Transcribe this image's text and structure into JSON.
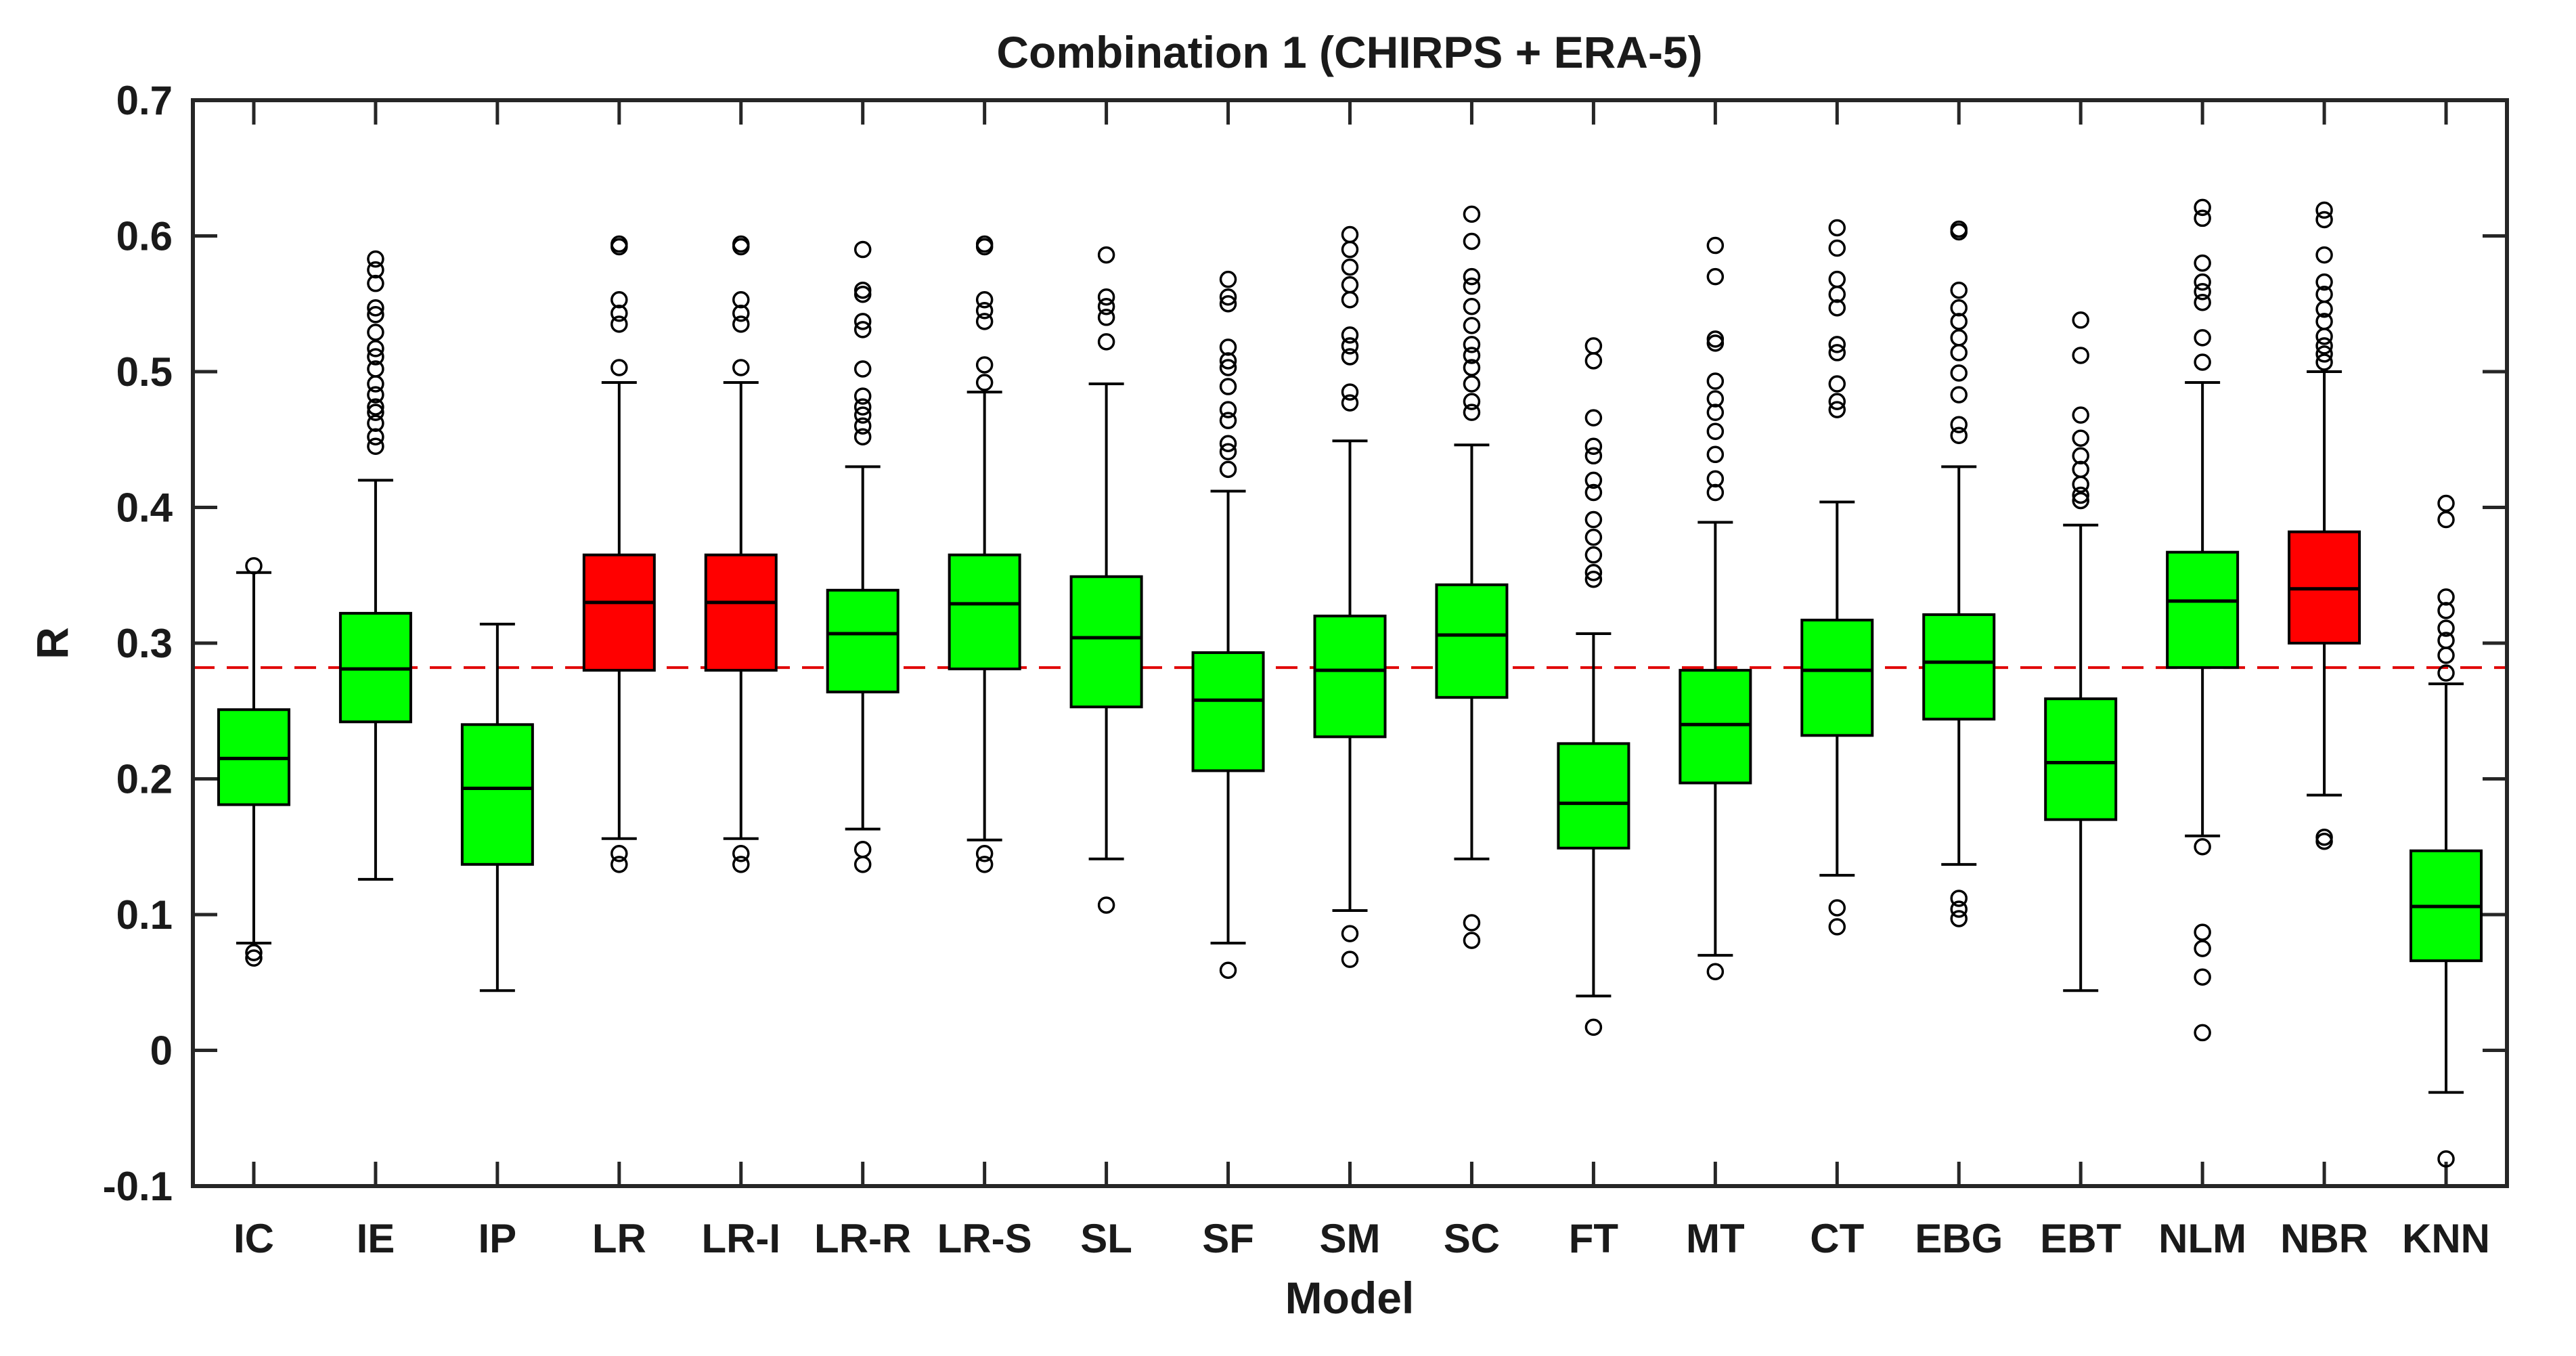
{
  "chart_data": {
    "type": "boxplot",
    "title": "Combination 1 (CHIRPS + ERA-5)",
    "xlabel": "Model",
    "ylabel": "R",
    "ylim": [
      -0.1,
      0.7
    ],
    "yticks": [
      -0.1,
      0,
      0.1,
      0.2,
      0.3,
      0.4,
      0.5,
      0.6,
      0.7
    ],
    "ytick_labels": [
      "-0.1",
      "0",
      "0.1",
      "0.2",
      "0.3",
      "0.4",
      "0.5",
      "0.6",
      "0.7"
    ],
    "reference_line": {
      "value": 0.282,
      "style": "dashed",
      "color": "#e00000"
    },
    "colors": {
      "green": "#00ff00",
      "red": "#ff0000",
      "outline": "#000000"
    },
    "categories": [
      "IC",
      "IE",
      "IP",
      "LR",
      "LR-I",
      "LR-R",
      "LR-S",
      "SL",
      "SF",
      "SM",
      "SC",
      "FT",
      "MT",
      "CT",
      "EBG",
      "EBT",
      "NLM",
      "NBR",
      "KNN"
    ],
    "boxes": [
      {
        "name": "IC",
        "q1": 0.181,
        "median": 0.215,
        "q3": 0.251,
        "whisker_low": 0.079,
        "whisker_high": 0.352,
        "color": "green",
        "outliers": [
          0.068,
          0.072,
          0.357
        ]
      },
      {
        "name": "IE",
        "q1": 0.242,
        "median": 0.281,
        "q3": 0.322,
        "whisker_low": 0.126,
        "whisker_high": 0.42,
        "color": "green",
        "outliers": [
          0.445,
          0.452,
          0.462,
          0.47,
          0.474,
          0.483,
          0.491,
          0.502,
          0.511,
          0.517,
          0.529,
          0.542,
          0.547,
          0.565,
          0.575,
          0.583
        ]
      },
      {
        "name": "IP",
        "q1": 0.137,
        "median": 0.193,
        "q3": 0.24,
        "whisker_low": 0.044,
        "whisker_high": 0.314,
        "color": "green",
        "outliers": []
      },
      {
        "name": "LR",
        "q1": 0.28,
        "median": 0.33,
        "q3": 0.365,
        "whisker_low": 0.156,
        "whisker_high": 0.492,
        "color": "red",
        "outliers": [
          0.137,
          0.145,
          0.503,
          0.535,
          0.543,
          0.553,
          0.592,
          0.594
        ]
      },
      {
        "name": "LR-I",
        "q1": 0.28,
        "median": 0.33,
        "q3": 0.365,
        "whisker_low": 0.156,
        "whisker_high": 0.492,
        "color": "red",
        "outliers": [
          0.137,
          0.145,
          0.503,
          0.535,
          0.543,
          0.553,
          0.592,
          0.594
        ]
      },
      {
        "name": "LR-R",
        "q1": 0.264,
        "median": 0.307,
        "q3": 0.339,
        "whisker_low": 0.163,
        "whisker_high": 0.43,
        "color": "green",
        "outliers": [
          0.137,
          0.148,
          0.452,
          0.46,
          0.468,
          0.474,
          0.482,
          0.502,
          0.531,
          0.537,
          0.557,
          0.56,
          0.59
        ]
      },
      {
        "name": "LR-S",
        "q1": 0.281,
        "median": 0.329,
        "q3": 0.365,
        "whisker_low": 0.155,
        "whisker_high": 0.485,
        "color": "green",
        "outliers": [
          0.137,
          0.145,
          0.492,
          0.505,
          0.537,
          0.545,
          0.553,
          0.592,
          0.594
        ]
      },
      {
        "name": "SL",
        "q1": 0.253,
        "median": 0.304,
        "q3": 0.349,
        "whisker_low": 0.141,
        "whisker_high": 0.491,
        "color": "green",
        "outliers": [
          0.107,
          0.522,
          0.54,
          0.548,
          0.555,
          0.586
        ]
      },
      {
        "name": "SF",
        "q1": 0.206,
        "median": 0.258,
        "q3": 0.293,
        "whisker_low": 0.079,
        "whisker_high": 0.412,
        "color": "green",
        "outliers": [
          0.059,
          0.428,
          0.441,
          0.447,
          0.464,
          0.472,
          0.489,
          0.503,
          0.508,
          0.518,
          0.55,
          0.555,
          0.568
        ]
      },
      {
        "name": "SM",
        "q1": 0.231,
        "median": 0.28,
        "q3": 0.32,
        "whisker_low": 0.103,
        "whisker_high": 0.449,
        "color": "green",
        "outliers": [
          0.067,
          0.086,
          0.477,
          0.485,
          0.511,
          0.519,
          0.527,
          0.553,
          0.564,
          0.577,
          0.59,
          0.601
        ]
      },
      {
        "name": "SC",
        "q1": 0.26,
        "median": 0.306,
        "q3": 0.343,
        "whisker_low": 0.141,
        "whisker_high": 0.446,
        "color": "green",
        "outliers": [
          0.081,
          0.094,
          0.47,
          0.478,
          0.491,
          0.503,
          0.512,
          0.52,
          0.534,
          0.548,
          0.563,
          0.57,
          0.596,
          0.616
        ]
      },
      {
        "name": "FT",
        "q1": 0.149,
        "median": 0.182,
        "q3": 0.226,
        "whisker_low": 0.04,
        "whisker_high": 0.307,
        "color": "green",
        "outliers": [
          0.017,
          0.347,
          0.352,
          0.365,
          0.378,
          0.391,
          0.411,
          0.42,
          0.438,
          0.445,
          0.466,
          0.508,
          0.519
        ]
      },
      {
        "name": "MT",
        "q1": 0.197,
        "median": 0.24,
        "q3": 0.28,
        "whisker_low": 0.07,
        "whisker_high": 0.389,
        "color": "green",
        "outliers": [
          0.058,
          0.411,
          0.421,
          0.439,
          0.456,
          0.47,
          0.48,
          0.493,
          0.521,
          0.524,
          0.57,
          0.593
        ]
      },
      {
        "name": "CT",
        "q1": 0.232,
        "median": 0.28,
        "q3": 0.317,
        "whisker_low": 0.129,
        "whisker_high": 0.404,
        "color": "green",
        "outliers": [
          0.091,
          0.105,
          0.472,
          0.478,
          0.491,
          0.514,
          0.52,
          0.547,
          0.557,
          0.568,
          0.591,
          0.606
        ]
      },
      {
        "name": "EBG",
        "q1": 0.244,
        "median": 0.286,
        "q3": 0.321,
        "whisker_low": 0.137,
        "whisker_high": 0.43,
        "color": "green",
        "outliers": [
          0.097,
          0.104,
          0.112,
          0.453,
          0.461,
          0.483,
          0.499,
          0.514,
          0.525,
          0.537,
          0.547,
          0.56,
          0.603,
          0.605
        ]
      },
      {
        "name": "EBT",
        "q1": 0.17,
        "median": 0.212,
        "q3": 0.259,
        "whisker_low": 0.044,
        "whisker_high": 0.387,
        "color": "green",
        "outliers": [
          0.405,
          0.409,
          0.417,
          0.428,
          0.438,
          0.451,
          0.468,
          0.512,
          0.538
        ]
      },
      {
        "name": "NLM",
        "q1": 0.282,
        "median": 0.331,
        "q3": 0.367,
        "whisker_low": 0.158,
        "whisker_high": 0.492,
        "color": "green",
        "outliers": [
          0.013,
          0.054,
          0.075,
          0.087,
          0.15,
          0.507,
          0.525,
          0.551,
          0.559,
          0.566,
          0.58,
          0.613,
          0.621
        ]
      },
      {
        "name": "NBR",
        "q1": 0.3,
        "median": 0.34,
        "q3": 0.382,
        "whisker_low": 0.188,
        "whisker_high": 0.5,
        "color": "red",
        "outliers": [
          0.154,
          0.157,
          0.507,
          0.513,
          0.519,
          0.526,
          0.537,
          0.546,
          0.557,
          0.566,
          0.586,
          0.612,
          0.619
        ]
      },
      {
        "name": "KNN",
        "q1": 0.066,
        "median": 0.106,
        "q3": 0.147,
        "whisker_low": -0.031,
        "whisker_high": 0.27,
        "color": "green",
        "outliers": [
          -0.08,
          0.278,
          0.291,
          0.302,
          0.311,
          0.324,
          0.334,
          0.391,
          0.403
        ]
      }
    ]
  }
}
